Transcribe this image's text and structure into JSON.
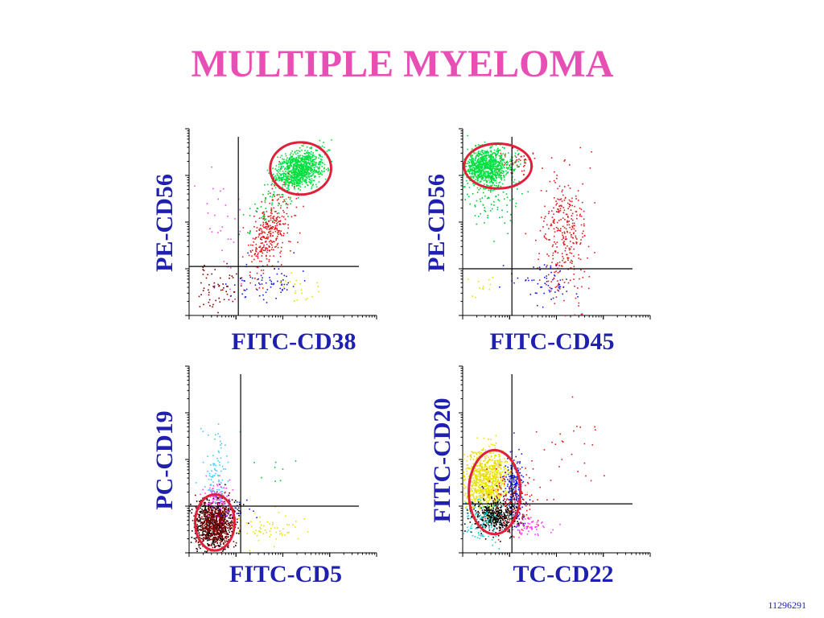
{
  "title": "MULTIPLE MYELOMA",
  "slide_id": "11296291",
  "colors": {
    "title": "#e84fb5",
    "label": "#1f1fb0",
    "gate": "#e0203a",
    "axis": "#000000"
  },
  "chart_data": [
    {
      "type": "scatter",
      "xlabel": "FITC-CD38",
      "ylabel": "PE-CD56",
      "scale": "log (4 decades)",
      "xlim": [
        0,
        4
      ],
      "ylim": [
        0,
        4
      ],
      "quadrant_cut": {
        "x": 1.05,
        "y": 1.05
      },
      "gate": {
        "cx": 2.38,
        "cy": 3.15,
        "rx": 0.65,
        "ry": 0.56
      },
      "populations": [
        {
          "color": "#00e040",
          "n": 900,
          "cx": 2.35,
          "cy": 3.15,
          "sx": 0.25,
          "sy": 0.2,
          "corr": 0.3
        },
        {
          "color": "#00c830",
          "n": 90,
          "cx": 1.8,
          "cy": 2.5,
          "sx": 0.3,
          "sy": 0.35,
          "corr": 0.6
        },
        {
          "color": "#e01a1a",
          "n": 320,
          "cx": 1.7,
          "cy": 1.75,
          "sx": 0.22,
          "sy": 0.45,
          "corr": 0.5
        },
        {
          "color": "#1a1ae0",
          "n": 70,
          "cx": 1.6,
          "cy": 0.7,
          "sx": 0.45,
          "sy": 0.25,
          "corr": 0
        },
        {
          "color": "#e8e000",
          "n": 20,
          "cx": 2.3,
          "cy": 0.55,
          "sx": 0.2,
          "sy": 0.15,
          "corr": 0
        },
        {
          "color": "#ff40ff",
          "n": 30,
          "cx": 0.7,
          "cy": 1.9,
          "sx": 0.3,
          "sy": 0.6,
          "corr": 0
        },
        {
          "color": "#800000",
          "n": 60,
          "cx": 0.6,
          "cy": 0.6,
          "sx": 0.3,
          "sy": 0.3,
          "corr": 0
        }
      ]
    },
    {
      "type": "scatter",
      "xlabel": "FITC-CD45",
      "ylabel": "PE-CD56",
      "scale": "log (4 decades)",
      "xlim": [
        0,
        4
      ],
      "ylim": [
        0,
        4
      ],
      "quadrant_cut": {
        "x": 1.05,
        "y": 1.0
      },
      "gate": {
        "cx": 0.75,
        "cy": 3.2,
        "rx": 0.72,
        "ry": 0.48
      },
      "populations": [
        {
          "color": "#00e040",
          "n": 900,
          "cx": 0.5,
          "cy": 3.2,
          "sx": 0.25,
          "sy": 0.2,
          "corr": 0
        },
        {
          "color": "#00c830",
          "n": 120,
          "cx": 0.6,
          "cy": 2.65,
          "sx": 0.3,
          "sy": 0.35,
          "corr": 0
        },
        {
          "color": "#e01a1a",
          "n": 320,
          "cx": 2.15,
          "cy": 1.75,
          "sx": 0.25,
          "sy": 0.7,
          "corr": 0
        },
        {
          "color": "#e01a1a",
          "n": 40,
          "cx": 1.2,
          "cy": 3.3,
          "sx": 0.15,
          "sy": 0.1,
          "corr": 0
        },
        {
          "color": "#1a1ae0",
          "n": 60,
          "cx": 1.7,
          "cy": 0.7,
          "sx": 0.4,
          "sy": 0.22,
          "corr": 0
        },
        {
          "color": "#e8e000",
          "n": 12,
          "cx": 0.5,
          "cy": 0.6,
          "sx": 0.15,
          "sy": 0.2,
          "corr": 0
        }
      ]
    },
    {
      "type": "scatter",
      "xlabel": "FITC-CD5",
      "ylabel": "PC-CD19",
      "scale": "log (4 decades)",
      "xlim": [
        0,
        4
      ],
      "ylim": [
        0,
        4
      ],
      "quadrant_cut": {
        "x": 1.1,
        "y": 1.0
      },
      "gate": {
        "cx": 0.55,
        "cy": 0.65,
        "rx": 0.42,
        "ry": 0.6
      },
      "populations": [
        {
          "color": "#000000",
          "n": 500,
          "cx": 0.5,
          "cy": 0.65,
          "sx": 0.22,
          "sy": 0.28,
          "corr": 0
        },
        {
          "color": "#800000",
          "n": 600,
          "cx": 0.55,
          "cy": 0.65,
          "sx": 0.2,
          "sy": 0.25,
          "corr": 0
        },
        {
          "color": "#ff40ff",
          "n": 90,
          "cx": 0.6,
          "cy": 1.2,
          "sx": 0.15,
          "sy": 0.2,
          "corr": 0
        },
        {
          "color": "#40c8ff",
          "n": 80,
          "cx": 0.55,
          "cy": 1.8,
          "sx": 0.15,
          "sy": 0.4,
          "corr": 0
        },
        {
          "color": "#e8e000",
          "n": 60,
          "cx": 1.75,
          "cy": 0.55,
          "sx": 0.3,
          "sy": 0.15,
          "corr": 0
        },
        {
          "color": "#1a1ae0",
          "n": 25,
          "cx": 1.0,
          "cy": 0.95,
          "sx": 0.2,
          "sy": 0.1,
          "corr": 0
        },
        {
          "color": "#00c830",
          "n": 8,
          "cx": 1.8,
          "cy": 1.8,
          "sx": 0.3,
          "sy": 0.3,
          "corr": 0
        }
      ]
    },
    {
      "type": "scatter",
      "xlabel": "TC-CD22",
      "ylabel": "FITC-CD20",
      "scale": "log (4 decades)",
      "xlim": [
        0,
        4
      ],
      "ylim": [
        0,
        4
      ],
      "quadrant_cut": {
        "x": 1.05,
        "y": 1.05
      },
      "gate": {
        "cx": 0.68,
        "cy": 1.3,
        "rx": 0.55,
        "ry": 0.9
      },
      "populations": [
        {
          "color": "#e8e000",
          "n": 900,
          "cx": 0.5,
          "cy": 1.55,
          "sx": 0.25,
          "sy": 0.35,
          "corr": 0
        },
        {
          "color": "#1a1ae0",
          "n": 220,
          "cx": 1.1,
          "cy": 1.4,
          "sx": 0.1,
          "sy": 0.35,
          "corr": 0
        },
        {
          "color": "#000000",
          "n": 450,
          "cx": 0.7,
          "cy": 0.8,
          "sx": 0.25,
          "sy": 0.2,
          "corr": 0
        },
        {
          "color": "#20d0d0",
          "n": 120,
          "cx": 0.4,
          "cy": 0.7,
          "sx": 0.25,
          "sy": 0.25,
          "corr": 0
        },
        {
          "color": "#e01a1a",
          "n": 150,
          "cx": 1.1,
          "cy": 1.1,
          "sx": 0.25,
          "sy": 0.35,
          "corr": 0
        },
        {
          "color": "#ff40ff",
          "n": 60,
          "cx": 1.4,
          "cy": 0.55,
          "sx": 0.2,
          "sy": 0.12,
          "corr": 0
        },
        {
          "color": "#e01a1a",
          "n": 25,
          "cx": 2.2,
          "cy": 2.2,
          "sx": 0.45,
          "sy": 0.45,
          "corr": 0
        }
      ]
    }
  ]
}
